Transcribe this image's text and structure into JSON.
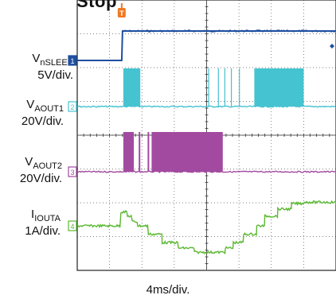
{
  "title_fragment": "Stop",
  "timebase_label": "4ms/div.",
  "colors": {
    "nsleep": "#1f4fa0",
    "aout1": "#46c3d0",
    "aout2": "#a24aa0",
    "iouta": "#5ab832",
    "trigger": "#f07820",
    "grid": "#555555"
  },
  "channels": [
    {
      "main": "V",
      "sub": "nSLEEP",
      "scale": "5V/div.",
      "marker": "1"
    },
    {
      "main": "V",
      "sub": "AOUT1",
      "scale": "20V/div.",
      "marker": "2"
    },
    {
      "main": "V",
      "sub": "AOUT2",
      "scale": "20V/div.",
      "marker": "3"
    },
    {
      "main": "I",
      "sub": "IOUTA",
      "scale": "1A/div.",
      "marker": "4"
    }
  ],
  "trigger_marker": "T",
  "chart_data": {
    "type": "line",
    "title": "Stop",
    "xlabel": "4ms/div.",
    "x_unit": "ms",
    "x_range": [
      0,
      32
    ],
    "series": [
      {
        "name": "VnSLEEP",
        "scale": "5V/div.",
        "points": [
          [
            0,
            0
          ],
          [
            5.5,
            0
          ],
          [
            5.6,
            5
          ],
          [
            32,
            5
          ]
        ]
      },
      {
        "name": "VAOUT1",
        "scale": "20V/div.",
        "bursts_ms": [
          [
            5.7,
            7.8
          ],
          [
            16.2,
            16.3
          ],
          [
            17.4,
            17.5
          ],
          [
            18.2,
            18.3
          ],
          [
            19.0,
            19.1
          ],
          [
            20.0,
            20.1
          ],
          [
            21.9,
            28.0
          ]
        ]
      },
      {
        "name": "VAOUT2",
        "scale": "20V/div.",
        "bursts_ms": [
          [
            5.7,
            7.0
          ],
          [
            7.6,
            7.8
          ],
          [
            8.7,
            8.9
          ],
          [
            9.2,
            18.0
          ]
        ]
      },
      {
        "name": "IOUTA",
        "scale": "1A/div.",
        "points": [
          [
            0,
            0
          ],
          [
            5.3,
            0
          ],
          [
            5.4,
            1.0
          ],
          [
            6.2,
            0.7
          ],
          [
            6.8,
            0.3
          ],
          [
            7.5,
            0
          ],
          [
            8.8,
            -0.6
          ],
          [
            10.5,
            -1.2
          ],
          [
            12.5,
            -1.6
          ],
          [
            14.5,
            -1.9
          ],
          [
            16.7,
            -1.9
          ],
          [
            18.3,
            -1.6
          ],
          [
            19.3,
            -1.2
          ],
          [
            20.6,
            -0.6
          ],
          [
            22.2,
            0
          ],
          [
            23.2,
            0.7
          ],
          [
            24.8,
            1.2
          ],
          [
            26.5,
            1.6
          ],
          [
            28,
            1.7
          ],
          [
            32,
            1.6
          ]
        ]
      }
    ]
  }
}
